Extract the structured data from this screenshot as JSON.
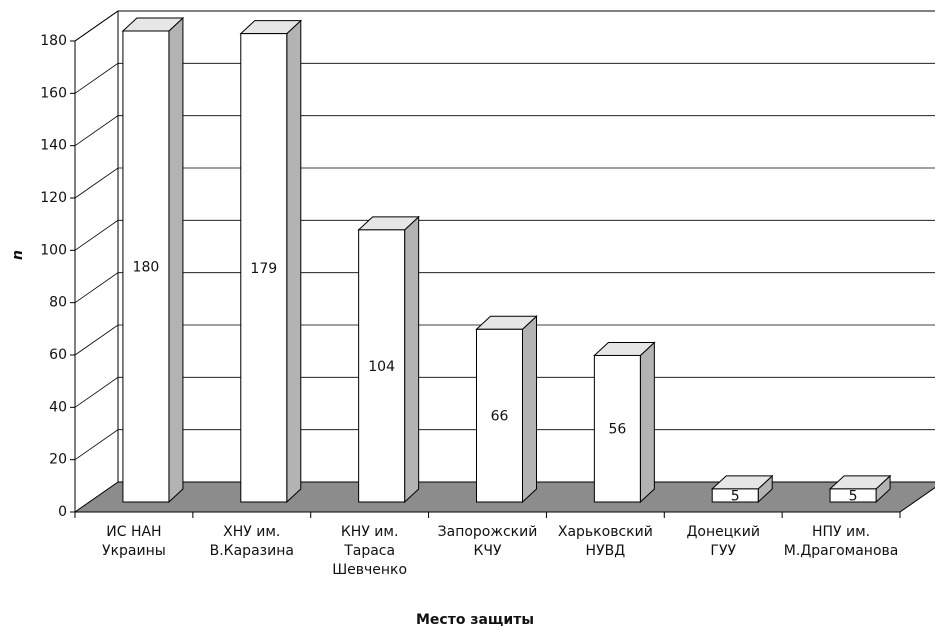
{
  "chart_data": {
    "type": "bar3d",
    "categories": [
      "ИС НАН\nУкраины",
      "ХНУ им.\nВ.Каразина",
      "КНУ им.\nТараса\nШевченко",
      "Запорожский\nКЧУ",
      "Харьковский\nНУВД",
      "Донецкий\nГУУ",
      "НПУ им.\nМ.Драгоманова"
    ],
    "values": [
      180,
      179,
      104,
      66,
      56,
      5,
      5
    ],
    "ylim": [
      0,
      180
    ],
    "yticks": [
      0,
      20,
      40,
      60,
      80,
      100,
      120,
      140,
      160,
      180
    ],
    "y_label": "n",
    "x_label": "Место защиты",
    "grid": true,
    "color": "#ffffff",
    "side_color": "#b3b3b3",
    "floor_color": "#8c8c8c"
  }
}
